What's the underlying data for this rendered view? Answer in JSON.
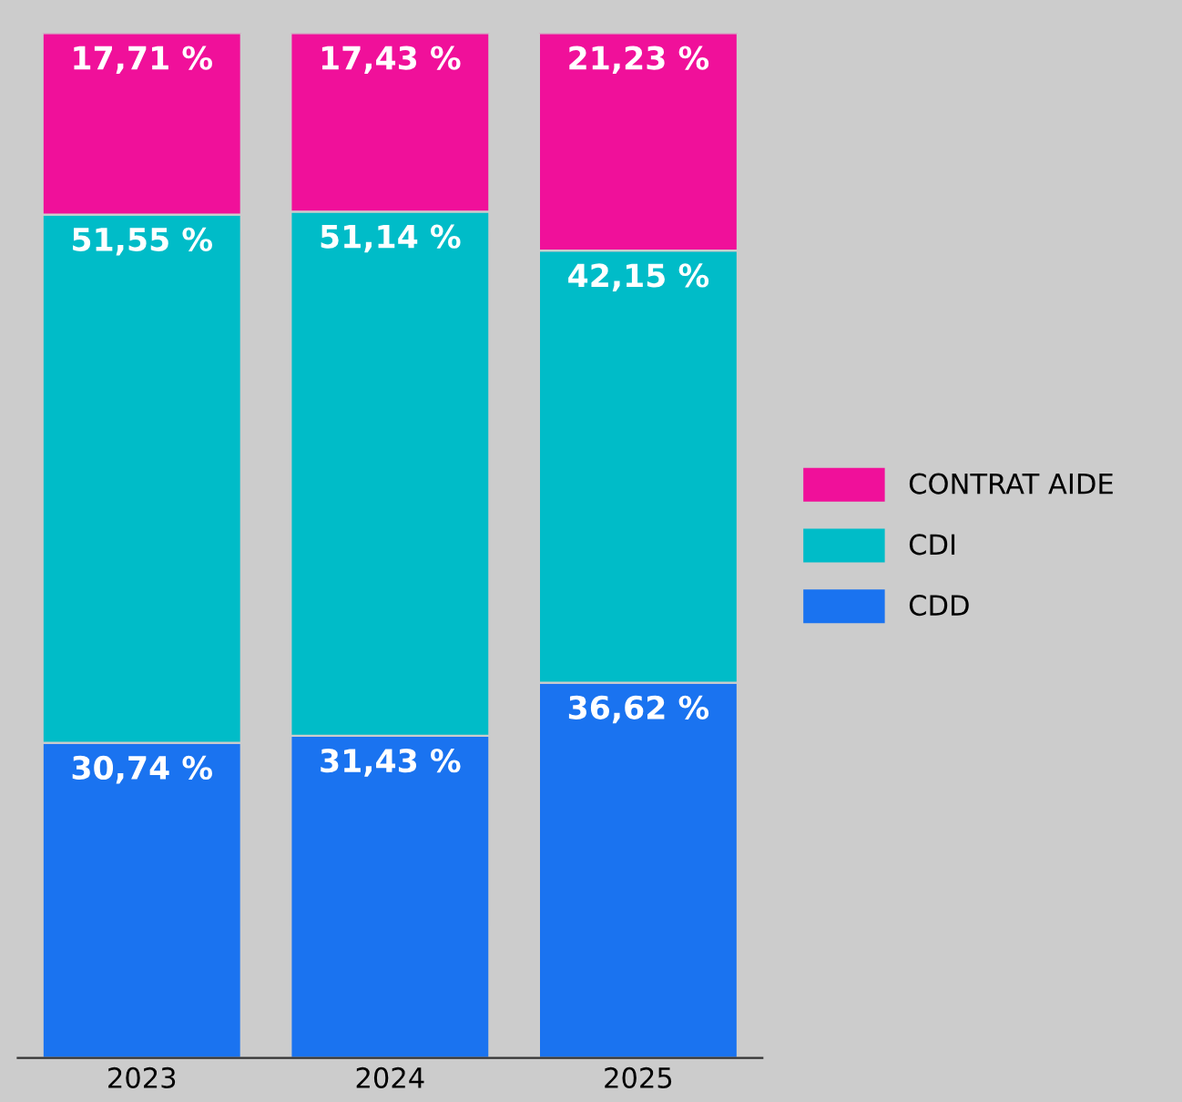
{
  "chart_data": {
    "type": "bar",
    "stacked": true,
    "categories": [
      "2023",
      "2024",
      "2025"
    ],
    "ylim": [
      0,
      100
    ],
    "grid": false,
    "legend": "right",
    "tick_labels": "x",
    "series": [
      {
        "name": "CDD",
        "color": "#1a73f0",
        "values": [
          30.74,
          31.43,
          36.62
        ],
        "value_labels": [
          "30,74 %",
          "31,43 %",
          "36,62 %"
        ]
      },
      {
        "name": "CDI",
        "color": "#00bcc8",
        "values": [
          51.55,
          51.14,
          42.15
        ],
        "value_labels": [
          "51,55 %",
          "51,14 %",
          "42,15 %"
        ]
      },
      {
        "name": "CONTRAT AIDE",
        "color": "#f0109a",
        "values": [
          17.71,
          17.43,
          21.23
        ],
        "value_labels": [
          "17,71 %",
          "17,43 %",
          "21,23 %"
        ]
      }
    ]
  }
}
